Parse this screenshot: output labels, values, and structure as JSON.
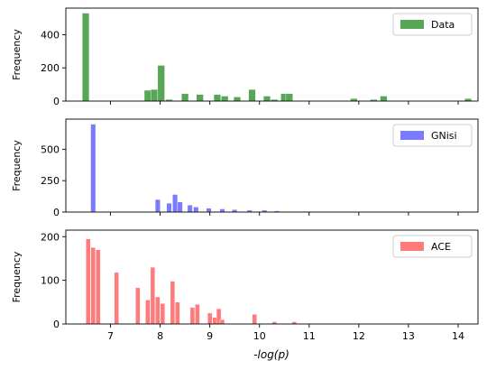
{
  "chart_data": [
    {
      "type": "bar",
      "ylabel": "Frequency",
      "xlim": [
        6.1,
        14.4
      ],
      "ylim": [
        0,
        560
      ],
      "yticks": [
        0,
        200,
        400
      ],
      "color": "#56a656",
      "legend_position": "top-right",
      "series": [
        {
          "name": "Data",
          "bin_width": 0.14,
          "x": [
            6.5,
            7.75,
            7.88,
            8.02,
            8.18,
            8.5,
            8.8,
            9.15,
            9.3,
            9.55,
            9.85,
            10.15,
            10.3,
            10.5,
            10.6,
            11.9,
            12.3,
            12.5,
            14.2
          ],
          "values": [
            530,
            65,
            70,
            215,
            10,
            45,
            40,
            40,
            30,
            25,
            70,
            30,
            10,
            45,
            45,
            15,
            10,
            30,
            15
          ]
        }
      ]
    },
    {
      "type": "bar",
      "ylabel": "Frequency",
      "xlim": [
        6.1,
        14.4
      ],
      "ylim": [
        0,
        740
      ],
      "yticks": [
        0,
        250,
        500
      ],
      "color": "#7b7bff",
      "legend_position": "top-right",
      "series": [
        {
          "name": "GNisi",
          "bin_width": 0.1,
          "x": [
            6.65,
            7.95,
            8.18,
            8.3,
            8.4,
            8.6,
            8.72,
            8.98,
            9.25,
            9.5,
            9.8,
            10.1,
            10.35,
            10.75,
            10.9,
            11.0
          ],
          "values": [
            700,
            100,
            70,
            140,
            80,
            55,
            40,
            30,
            25,
            20,
            15,
            15,
            10,
            5,
            5,
            5
          ]
        }
      ]
    },
    {
      "type": "bar",
      "ylabel": "Frequency",
      "xlabel": "-log(p)",
      "xlim": [
        6.1,
        14.4
      ],
      "xticks": [
        7,
        8,
        9,
        10,
        11,
        12,
        13,
        14
      ],
      "ylim": [
        0,
        215
      ],
      "yticks": [
        0,
        100,
        200
      ],
      "color": "#ff7b7b",
      "legend_position": "top-right",
      "series": [
        {
          "name": "ACE",
          "bin_width": 0.09,
          "x": [
            6.55,
            6.65,
            6.75,
            7.12,
            7.55,
            7.75,
            7.85,
            7.95,
            8.05,
            8.25,
            8.35,
            8.65,
            8.75,
            9.0,
            9.1,
            9.18,
            9.25,
            9.9,
            10.3,
            10.7
          ],
          "values": [
            195,
            175,
            170,
            118,
            83,
            55,
            130,
            62,
            47,
            98,
            50,
            38,
            45,
            25,
            15,
            35,
            10,
            22,
            5,
            5
          ]
        }
      ]
    }
  ]
}
